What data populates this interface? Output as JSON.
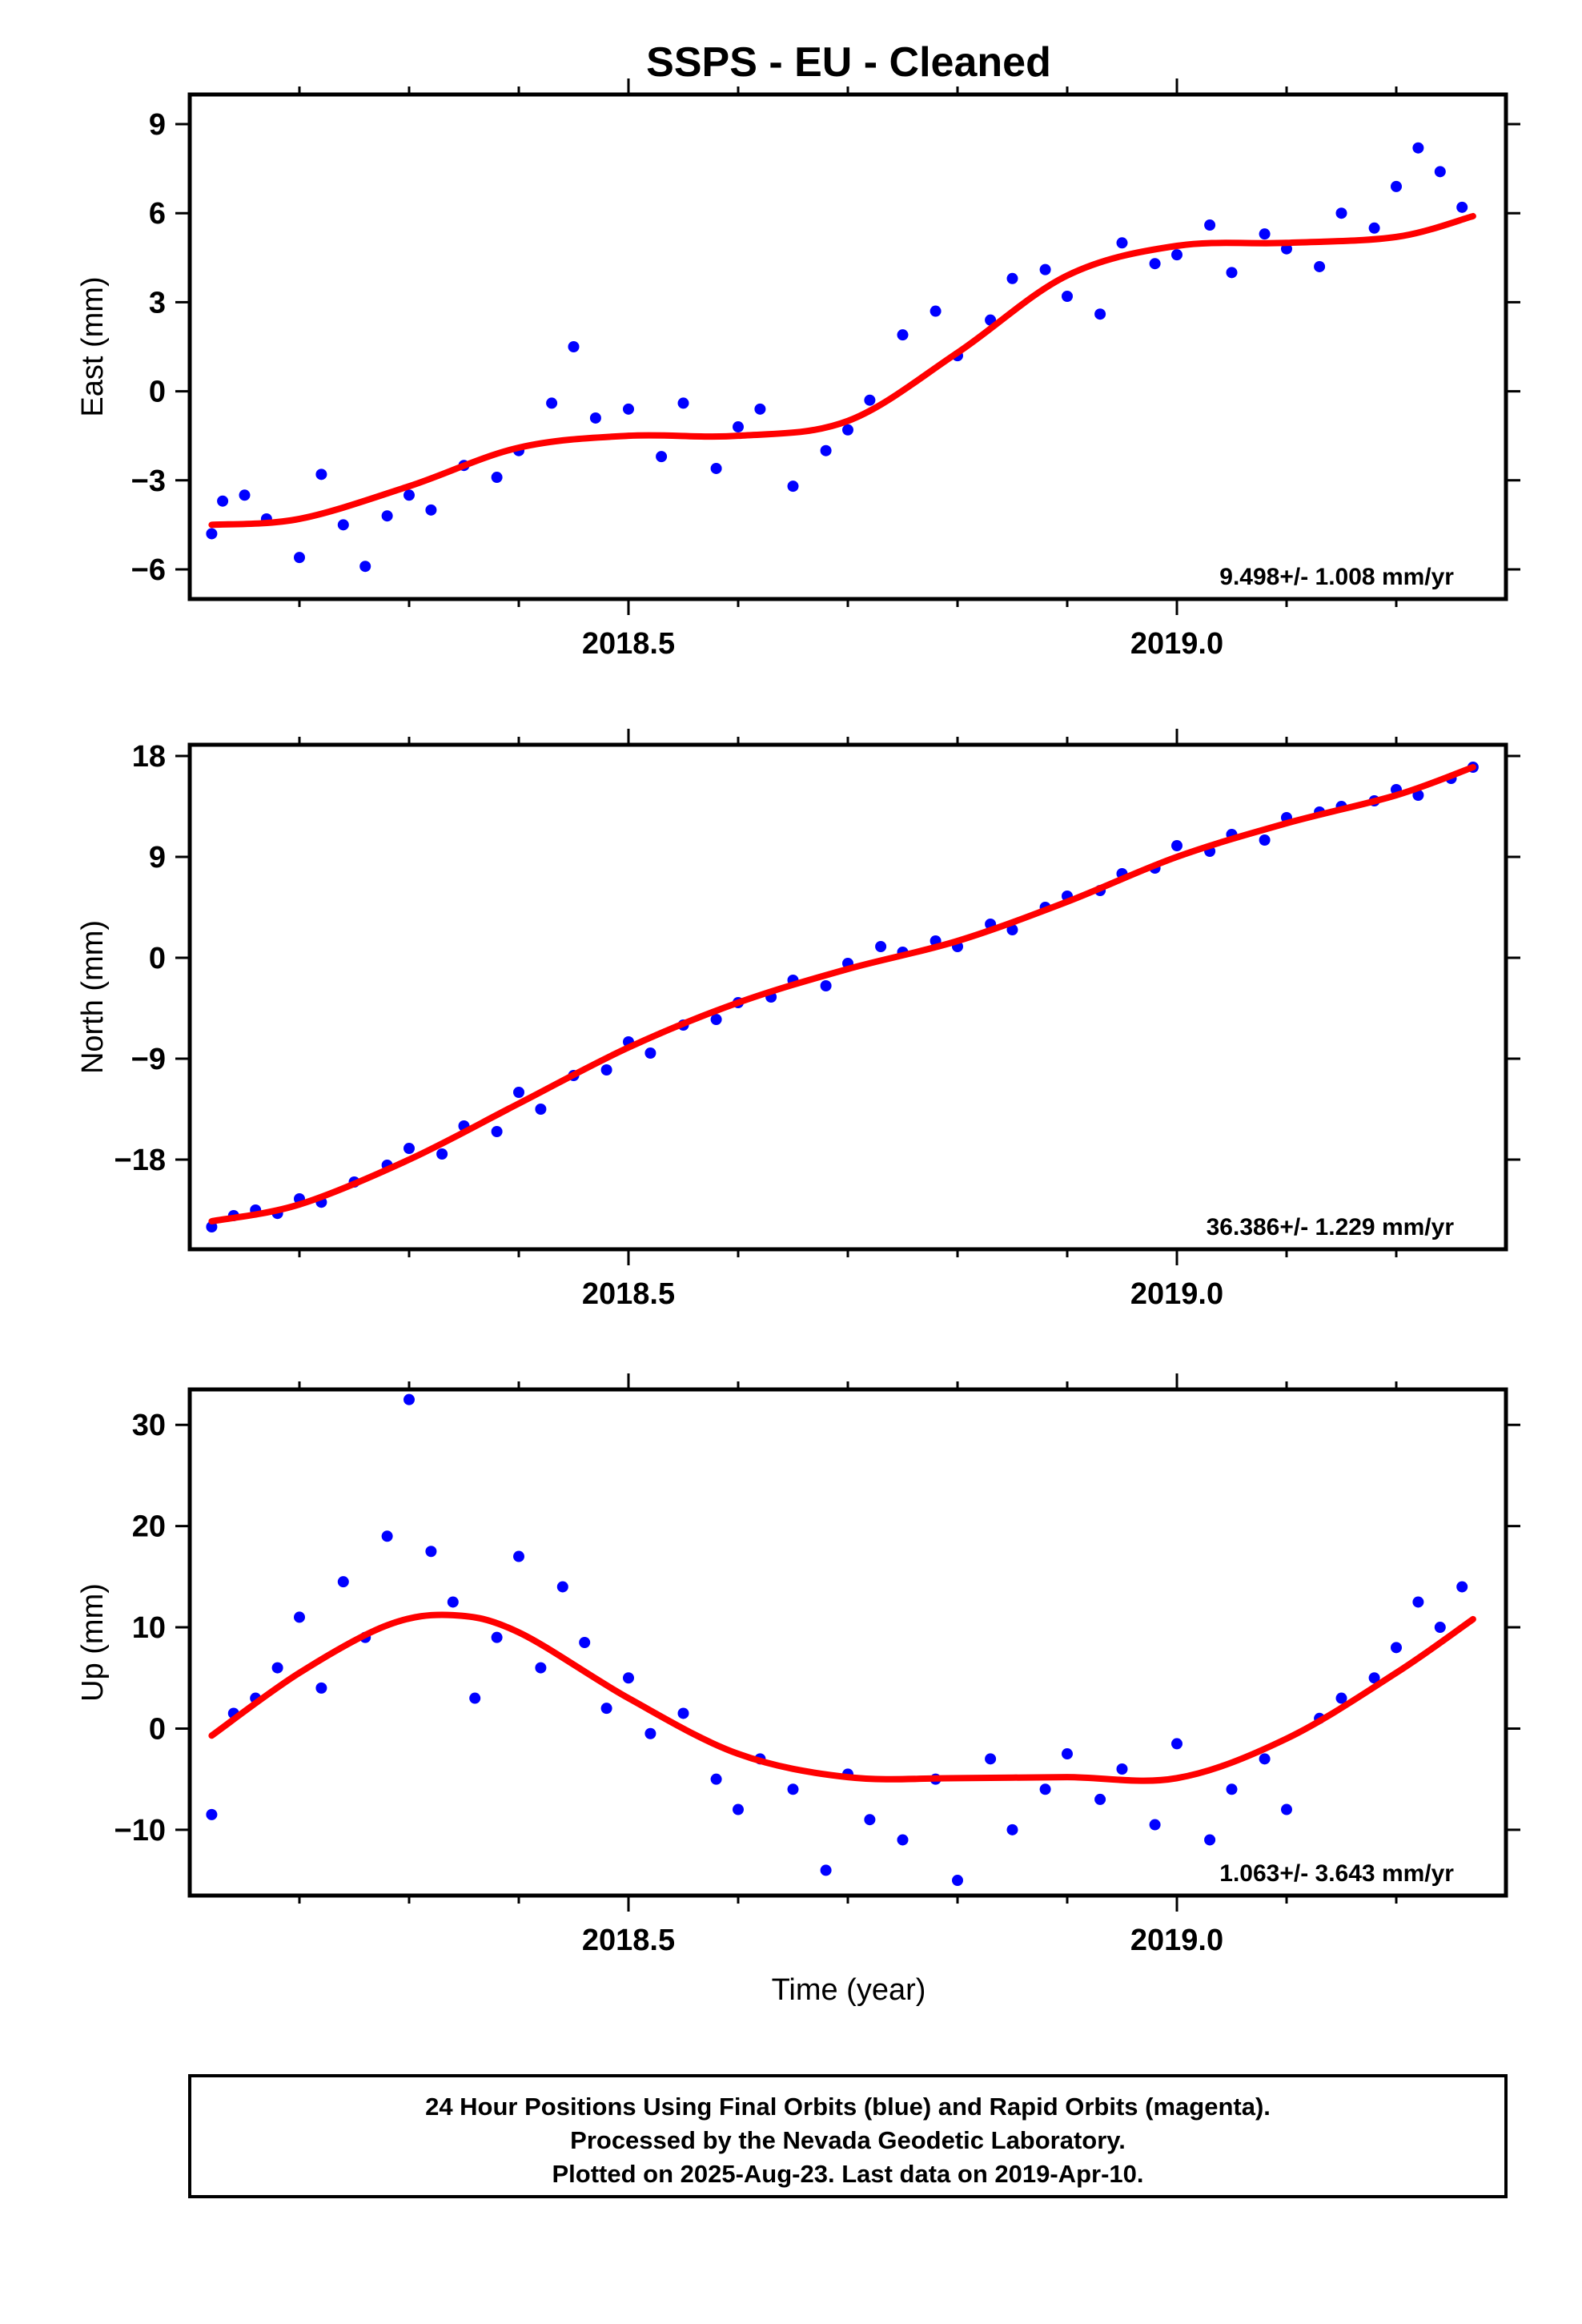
{
  "title": "SSPS  - EU - Cleaned",
  "x_axis": {
    "label": "Time (year)",
    "ticks": [
      2018.5,
      2019.0
    ],
    "tick_labels": [
      "2018.5",
      "2019.0"
    ],
    "range": [
      2018.1,
      2019.3
    ]
  },
  "colors": {
    "points": "#0000ff",
    "fit": "#ff0000",
    "frame": "#000000"
  },
  "footer": {
    "line1": "24 Hour Positions Using Final Orbits (blue) and Rapid Orbits (magenta).",
    "line2": "Processed by the Nevada Geodetic Laboratory.",
    "line3": "Plotted on 2025-Aug-23. Last data on 2019-Apr-10."
  },
  "chart_data": [
    {
      "type": "scatter",
      "ylabel": "East (mm)",
      "ylim": [
        -7,
        10
      ],
      "yticks": [
        -6,
        -3,
        0,
        3,
        6,
        9
      ],
      "ytick_labels": [
        "−6",
        "−3",
        "0",
        "3",
        "6",
        "9"
      ],
      "rate_label": "9.498+/- 1.008 mm/yr",
      "fit": {
        "x": [
          2018.12,
          2018.2,
          2018.3,
          2018.4,
          2018.5,
          2018.6,
          2018.7,
          2018.8,
          2018.9,
          2019.0,
          2019.1,
          2019.2,
          2019.27
        ],
        "y": [
          -4.5,
          -4.3,
          -3.2,
          -1.9,
          -1.5,
          -1.5,
          -1.0,
          1.3,
          3.9,
          4.9,
          5.0,
          5.2,
          5.9
        ]
      },
      "series": [
        {
          "x": [
            2018.12,
            2018.13,
            2018.15,
            2018.17,
            2018.2,
            2018.22,
            2018.24,
            2018.26,
            2018.28,
            2018.3,
            2018.32,
            2018.35,
            2018.38,
            2018.4,
            2018.43,
            2018.45,
            2018.47,
            2018.5,
            2018.53,
            2018.55,
            2018.58,
            2018.6,
            2018.62,
            2018.65,
            2018.68,
            2018.7,
            2018.72,
            2018.75,
            2018.78,
            2018.8,
            2018.83,
            2018.85,
            2018.88,
            2018.9,
            2018.93,
            2018.95,
            2018.98,
            2019.0,
            2019.03,
            2019.05,
            2019.08,
            2019.1,
            2019.13,
            2019.15,
            2019.18,
            2019.2,
            2019.22,
            2019.24,
            2019.26
          ],
          "y": [
            -4.8,
            -3.7,
            -3.5,
            -4.3,
            -5.6,
            -2.8,
            -4.5,
            -5.9,
            -4.2,
            -3.5,
            -4.0,
            -2.5,
            -2.9,
            -2.0,
            -0.4,
            1.5,
            -0.9,
            -0.6,
            -2.2,
            -0.4,
            -2.6,
            -1.2,
            -0.6,
            -3.2,
            -2.0,
            -1.3,
            -0.3,
            1.9,
            2.7,
            1.2,
            2.4,
            3.8,
            4.1,
            3.2,
            2.6,
            5.0,
            4.3,
            4.6,
            5.6,
            4.0,
            5.3,
            4.8,
            4.2,
            6.0,
            5.5,
            6.9,
            8.2,
            7.4,
            6.2
          ]
        }
      ]
    },
    {
      "type": "scatter",
      "ylabel": "North (mm)",
      "ylim": [
        -26,
        19
      ],
      "yticks": [
        -18,
        -9,
        0,
        9,
        18
      ],
      "ytick_labels": [
        "−18",
        "−9",
        "0",
        "9",
        "18"
      ],
      "rate_label": "36.386+/- 1.229 mm/yr",
      "fit": {
        "x": [
          2018.12,
          2018.2,
          2018.3,
          2018.4,
          2018.5,
          2018.6,
          2018.7,
          2018.8,
          2018.9,
          2019.0,
          2019.1,
          2019.2,
          2019.27
        ],
        "y": [
          -23.5,
          -22.0,
          -18.0,
          -13.0,
          -8.0,
          -4.0,
          -1.0,
          1.5,
          5.0,
          9.0,
          12.0,
          14.5,
          17.0
        ]
      },
      "series": [
        {
          "x": [
            2018.12,
            2018.14,
            2018.16,
            2018.18,
            2018.2,
            2018.22,
            2018.25,
            2018.28,
            2018.3,
            2018.33,
            2018.35,
            2018.38,
            2018.4,
            2018.42,
            2018.45,
            2018.48,
            2018.5,
            2018.52,
            2018.55,
            2018.58,
            2018.6,
            2018.63,
            2018.65,
            2018.68,
            2018.7,
            2018.73,
            2018.75,
            2018.78,
            2018.8,
            2018.83,
            2018.85,
            2018.88,
            2018.9,
            2018.93,
            2018.95,
            2018.98,
            2019.0,
            2019.03,
            2019.05,
            2019.08,
            2019.1,
            2019.13,
            2019.15,
            2019.18,
            2019.2,
            2019.22,
            2019.25,
            2019.27
          ],
          "y": [
            -24.0,
            -23.0,
            -22.5,
            -22.8,
            -21.5,
            -21.8,
            -20.0,
            -18.5,
            -17.0,
            -17.5,
            -15.0,
            -15.5,
            -12.0,
            -13.5,
            -10.5,
            -10.0,
            -7.5,
            -8.5,
            -6.0,
            -5.5,
            -4.0,
            -3.5,
            -2.0,
            -2.5,
            -0.5,
            1.0,
            0.5,
            1.5,
            1.0,
            3.0,
            2.5,
            4.5,
            5.5,
            6.0,
            7.5,
            8.0,
            10.0,
            9.5,
            11.0,
            10.5,
            12.5,
            13.0,
            13.5,
            14.0,
            15.0,
            14.5,
            16.0,
            17.0
          ]
        }
      ]
    },
    {
      "type": "scatter",
      "ylabel": "Up (mm)",
      "ylim": [
        -16.5,
        33.5
      ],
      "yticks": [
        -10,
        0,
        10,
        20,
        30
      ],
      "ytick_labels": [
        "−10",
        "0",
        "10",
        "20",
        "30"
      ],
      "rate_label": "1.063+/- 3.643 mm/yr",
      "fit": {
        "x": [
          2018.12,
          2018.2,
          2018.28,
          2018.34,
          2018.4,
          2018.5,
          2018.6,
          2018.7,
          2018.8,
          2018.9,
          2019.0,
          2019.1,
          2019.2,
          2019.27
        ],
        "y": [
          -0.7,
          5.5,
          10.2,
          11.2,
          9.5,
          3.0,
          -2.5,
          -4.8,
          -4.9,
          -4.8,
          -4.9,
          -1.0,
          5.5,
          10.8
        ]
      },
      "series": [
        {
          "x": [
            2018.12,
            2018.14,
            2018.16,
            2018.18,
            2018.2,
            2018.22,
            2018.24,
            2018.26,
            2018.28,
            2018.3,
            2018.32,
            2018.34,
            2018.36,
            2018.38,
            2018.4,
            2018.42,
            2018.44,
            2018.46,
            2018.48,
            2018.5,
            2018.52,
            2018.55,
            2018.58,
            2018.6,
            2018.62,
            2018.65,
            2018.68,
            2018.7,
            2018.72,
            2018.75,
            2018.78,
            2018.8,
            2018.83,
            2018.85,
            2018.88,
            2018.9,
            2018.93,
            2018.95,
            2018.98,
            2019.0,
            2019.03,
            2019.05,
            2019.08,
            2019.1,
            2019.13,
            2019.15,
            2019.18,
            2019.2,
            2019.22,
            2019.24,
            2019.26
          ],
          "y": [
            -8.5,
            1.5,
            3.0,
            6.0,
            11.0,
            4.0,
            14.5,
            9.0,
            19.0,
            32.5,
            17.5,
            12.5,
            3.0,
            9.0,
            17.0,
            6.0,
            14.0,
            8.5,
            2.0,
            5.0,
            -0.5,
            1.5,
            -5.0,
            -8.0,
            -3.0,
            -6.0,
            -14.0,
            -4.5,
            -9.0,
            -11.0,
            -5.0,
            -15.0,
            -3.0,
            -10.0,
            -6.0,
            -2.5,
            -7.0,
            -4.0,
            -9.5,
            -1.5,
            -11.0,
            -6.0,
            -3.0,
            -8.0,
            1.0,
            3.0,
            5.0,
            8.0,
            12.5,
            10.0,
            14.0
          ]
        }
      ]
    }
  ]
}
